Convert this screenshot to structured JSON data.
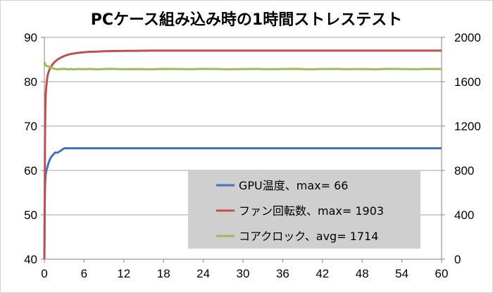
{
  "chart_data": {
    "type": "line",
    "title": "PCケース組み込み時の1時間ストレステスト",
    "xlabel": "",
    "ylabel": "",
    "x": [
      0,
      0.05,
      0.1,
      0.15,
      0.2,
      0.3,
      0.4,
      0.5,
      0.7,
      1,
      1.3,
      1.6,
      2,
      2.5,
      3,
      3.5,
      4,
      4.5,
      5,
      6,
      7,
      8,
      9,
      10,
      12,
      14,
      16,
      18,
      20,
      22,
      24,
      26,
      28,
      30,
      32,
      34,
      36,
      38,
      40,
      42,
      44,
      46,
      48,
      50,
      52,
      54,
      56,
      58,
      60
    ],
    "x_axis": {
      "min": 0,
      "max": 60,
      "ticks": [
        "0",
        "6",
        "12",
        "18",
        "24",
        "30",
        "36",
        "42",
        "48",
        "54",
        "60"
      ]
    },
    "y_left": {
      "min": 40,
      "max": 90,
      "ticks": [
        "40",
        "50",
        "60",
        "70",
        "80",
        "90"
      ]
    },
    "y_right": {
      "min": 0,
      "max": 2000,
      "ticks": [
        "0",
        "400",
        "800",
        "1200",
        "1600",
        "2000"
      ]
    },
    "grid": true,
    "legend_position": "bottom-right",
    "series": [
      {
        "name": "GPU温度、max= 66",
        "axis": "left",
        "color": "#4472C4",
        "values": [
          40,
          52,
          56,
          58,
          59,
          60,
          60.5,
          61,
          62,
          63,
          63.5,
          64,
          64,
          64.5,
          65,
          65,
          65,
          65,
          65,
          65,
          65,
          65,
          65,
          65,
          65,
          65,
          65,
          65,
          65,
          65,
          65,
          65,
          65,
          65,
          65,
          65,
          65,
          65,
          65,
          65,
          65,
          65,
          65,
          65,
          65,
          65,
          65,
          65,
          65
        ]
      },
      {
        "name": "ファン回転数、max= 1903",
        "axis": "right",
        "color": "#C0504D",
        "values": [
          0,
          500,
          1100,
          1350,
          1480,
          1560,
          1620,
          1660,
          1700,
          1735,
          1760,
          1780,
          1800,
          1818,
          1832,
          1842,
          1850,
          1855,
          1860,
          1866,
          1870,
          1872,
          1874,
          1876,
          1878,
          1879,
          1880,
          1880,
          1880,
          1880,
          1880,
          1880,
          1880,
          1880,
          1880,
          1880,
          1880,
          1880,
          1880,
          1880,
          1880,
          1880,
          1880,
          1880,
          1880,
          1880,
          1880,
          1880,
          1880
        ]
      },
      {
        "name": "コアクロック、avg= 1714",
        "axis": "right",
        "color": "#9BBB59",
        "values": [
          1760,
          1770,
          1760,
          1755,
          1750,
          1745,
          1740,
          1738,
          1735,
          1730,
          1720,
          1715,
          1712,
          1714,
          1716,
          1712,
          1714,
          1710,
          1715,
          1713,
          1715,
          1712,
          1714,
          1716,
          1713,
          1714,
          1712,
          1715,
          1714,
          1713,
          1716,
          1714,
          1712,
          1714,
          1715,
          1713,
          1714,
          1716,
          1712,
          1714,
          1715,
          1713,
          1714,
          1712,
          1716,
          1714,
          1713,
          1715,
          1714
        ]
      }
    ]
  }
}
